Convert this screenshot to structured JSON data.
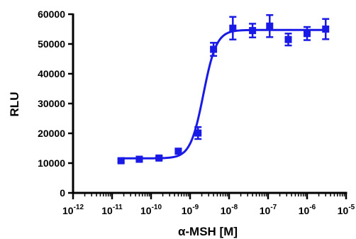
{
  "chart_data": {
    "type": "scatter",
    "xscale": "log",
    "xlim": [
      1e-12,
      1e-05
    ],
    "ylim": [
      0,
      60000
    ],
    "xlabel": "α-MSH [M]",
    "ylabel": "RLU",
    "title": "",
    "grid": false,
    "yticks": [
      0,
      10000,
      20000,
      30000,
      40000,
      50000,
      60000
    ],
    "ytick_labels": [
      "0",
      "10000",
      "20000",
      "30000",
      "40000",
      "50000",
      "60000"
    ],
    "xticks": [
      1e-12,
      1e-11,
      1e-10,
      1e-09,
      1e-08,
      1e-07,
      1e-06,
      1e-05
    ],
    "xtick_labels": [
      {
        "base": "10",
        "exp": "-12"
      },
      {
        "base": "10",
        "exp": "-11"
      },
      {
        "base": "10",
        "exp": "-10"
      },
      {
        "base": "10",
        "exp": "-9"
      },
      {
        "base": "10",
        "exp": "-8"
      },
      {
        "base": "10",
        "exp": "-7"
      },
      {
        "base": "10",
        "exp": "-6"
      },
      {
        "base": "10",
        "exp": "-5"
      }
    ],
    "series": [
      {
        "color": "#1a1ae6",
        "marker": "square",
        "points": [
          {
            "x": 1.7e-11,
            "y": 10800,
            "err": 500
          },
          {
            "x": 5e-11,
            "y": 11300,
            "err": 500
          },
          {
            "x": 1.6e-10,
            "y": 11700,
            "err": 500
          },
          {
            "x": 5e-10,
            "y": 14000,
            "err": 800
          },
          {
            "x": 1.6e-09,
            "y": 20100,
            "err": 2000
          },
          {
            "x": 4e-09,
            "y": 48200,
            "err": 2200
          },
          {
            "x": 1.25e-08,
            "y": 55300,
            "err": 3800
          },
          {
            "x": 4e-08,
            "y": 54500,
            "err": 2300
          },
          {
            "x": 1.1e-07,
            "y": 56000,
            "err": 3700
          },
          {
            "x": 3.3e-07,
            "y": 51500,
            "err": 2000
          },
          {
            "x": 1e-06,
            "y": 53500,
            "err": 2200
          },
          {
            "x": 3e-06,
            "y": 55000,
            "err": 3400
          }
        ],
        "fit": {
          "model": "sigmoid",
          "bottom": 11600,
          "top": 54700,
          "ec50": 2.2e-09,
          "hill": 2.6
        }
      }
    ]
  }
}
